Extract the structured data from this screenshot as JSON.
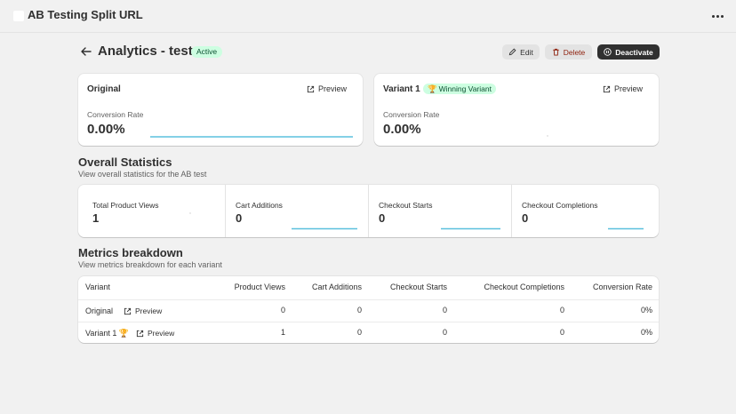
{
  "app": {
    "title": "AB Testing Split URL"
  },
  "header": {
    "title": "Analytics - test",
    "status": "Active",
    "edit_label": "Edit",
    "delete_label": "Delete",
    "deactivate_label": "Deactivate"
  },
  "variants": [
    {
      "name": "Original",
      "preview_label": "Preview",
      "metric_label": "Conversion Rate",
      "metric_value": "0.00%"
    },
    {
      "name": "Variant 1",
      "badge": "Winning Variant",
      "preview_label": "Preview",
      "metric_label": "Conversion Rate",
      "metric_value": "0.00%"
    }
  ],
  "overall": {
    "title": "Overall Statistics",
    "subtitle": "View overall statistics for the AB test",
    "stats": [
      {
        "label": "Total Product Views",
        "value": "1"
      },
      {
        "label": "Cart Additions",
        "value": "0"
      },
      {
        "label": "Checkout Starts",
        "value": "0"
      },
      {
        "label": "Checkout Completions",
        "value": "0"
      }
    ]
  },
  "breakdown": {
    "title": "Metrics breakdown",
    "subtitle": "View metrics breakdown for each variant",
    "columns": [
      "Variant",
      "Product Views",
      "Cart Additions",
      "Checkout Starts",
      "Checkout Completions",
      "Conversion Rate"
    ],
    "rows": [
      {
        "variant": "Original",
        "preview_label": "Preview",
        "product_views": "0",
        "cart_additions": "0",
        "checkout_starts": "0",
        "checkout_completions": "0",
        "conversion_rate": "0%"
      },
      {
        "variant": "Variant 1 🏆",
        "preview_label": "Preview",
        "product_views": "1",
        "cart_additions": "0",
        "checkout_starts": "0",
        "checkout_completions": "0",
        "conversion_rate": "0%"
      }
    ]
  },
  "colors": {
    "accent_line": "#5bc0de",
    "badge_bg": "#cdfee1",
    "badge_text": "#0c5132",
    "delete_text": "#8e1f0b",
    "dark_button": "#303030"
  }
}
